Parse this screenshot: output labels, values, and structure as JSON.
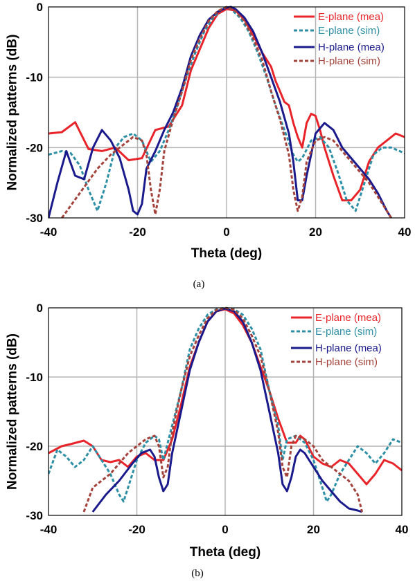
{
  "chart_data": [
    {
      "type": "line",
      "caption": "(a)",
      "xlabel": "Theta (deg)",
      "ylabel": "Normalized patterns (dB)",
      "xlim": [
        -40,
        40
      ],
      "ylim": [
        -30,
        0
      ],
      "xticks": [
        -40,
        -20,
        0,
        20,
        40
      ],
      "yticks": [
        0,
        -10,
        -20,
        -30
      ],
      "grid": true,
      "legend_position": "top-right",
      "series": [
        {
          "name": "E-plane (mea)",
          "color": "#e8242a",
          "dash": "solid",
          "x": [
            -40,
            -37,
            -34,
            -31,
            -28,
            -25,
            -22,
            -19,
            -16,
            -13,
            -10,
            -8,
            -6,
            -4,
            -2,
            0,
            2,
            4,
            6,
            8,
            10,
            11,
            12,
            13,
            14,
            15,
            16,
            17,
            18,
            19,
            20,
            21,
            22,
            24,
            26,
            28,
            30,
            32,
            34,
            36,
            38,
            40
          ],
          "y": [
            -18,
            -17.8,
            -16.4,
            -20.2,
            -20.5,
            -20,
            -21.8,
            -21.5,
            -17.5,
            -17,
            -14,
            -9,
            -6,
            -3,
            -1,
            -0.3,
            -0.5,
            -1.8,
            -4,
            -6.5,
            -8.5,
            -10.5,
            -12,
            -13.5,
            -14,
            -16.5,
            -18.5,
            -20,
            -16.5,
            -15.2,
            -15.5,
            -17.5,
            -20,
            -24,
            -27.5,
            -27.5,
            -26,
            -22,
            -20,
            -19,
            -18,
            -18.5
          ]
        },
        {
          "name": "E-plane (sim)",
          "color": "#2d8fa6",
          "dash": "dashed",
          "x": [
            -40,
            -37,
            -35,
            -33,
            -31,
            -29,
            -27,
            -25,
            -23,
            -21,
            -19,
            -17,
            -15,
            -13,
            -11,
            -9,
            -7,
            -5,
            -3,
            -1,
            0,
            1,
            3,
            5,
            7,
            9,
            11,
            13,
            15,
            16,
            17,
            19,
            21,
            23,
            25,
            27,
            29,
            31,
            33,
            35,
            37,
            40
          ],
          "y": [
            -21,
            -20.5,
            -20.8,
            -22.5,
            -26,
            -29,
            -25,
            -20,
            -18.5,
            -18,
            -19,
            -22,
            -20.5,
            -17.5,
            -14,
            -10,
            -6.5,
            -3.5,
            -1.5,
            -0.3,
            -0.1,
            -0.3,
            -1.5,
            -3.5,
            -6.5,
            -10,
            -14,
            -17.5,
            -21,
            -22,
            -21.5,
            -19,
            -18.5,
            -20,
            -23.5,
            -27.5,
            -29,
            -25,
            -21,
            -20,
            -20,
            -20.8
          ]
        },
        {
          "name": "H-plane (mea)",
          "color": "#1a1a8c",
          "dash": "solid",
          "x": [
            -40,
            -38,
            -36,
            -34,
            -32,
            -30,
            -28,
            -26,
            -24,
            -22,
            -21,
            -20,
            -19,
            -18,
            -16,
            -14,
            -12,
            -10,
            -8,
            -6,
            -4,
            -2,
            0,
            1,
            2,
            4,
            6,
            8,
            10,
            12,
            14,
            15,
            16,
            17,
            18,
            20,
            22,
            24,
            26,
            28,
            30,
            32,
            34,
            36,
            37
          ],
          "y": [
            -30,
            -25,
            -20.5,
            -24,
            -24.5,
            -20,
            -17.5,
            -19,
            -21.5,
            -26,
            -29,
            -29.5,
            -28,
            -23,
            -20.5,
            -17.5,
            -15,
            -11.5,
            -7,
            -4,
            -1.8,
            -0.7,
            -0.1,
            0,
            -0.3,
            -1.5,
            -3.5,
            -6.5,
            -10,
            -13.5,
            -18,
            -22,
            -27.5,
            -27.5,
            -24,
            -18,
            -16.5,
            -17.5,
            -20,
            -21.5,
            -23,
            -24.5,
            -26.5,
            -29,
            -30
          ]
        },
        {
          "name": "H-plane (sim)",
          "color": "#a3433b",
          "dash": "dashed",
          "x": [
            -37,
            -33,
            -29,
            -26,
            -23,
            -21,
            -19,
            -18,
            -17,
            -16,
            -15,
            -14,
            -12,
            -10,
            -8,
            -6,
            -4,
            -2,
            0,
            2,
            4,
            6,
            8,
            10,
            12,
            14,
            15,
            16,
            17,
            18,
            20,
            22,
            24,
            26,
            28,
            30,
            32,
            34,
            36,
            37
          ],
          "y": [
            -30,
            -26.5,
            -23,
            -21,
            -19.5,
            -18.5,
            -19,
            -21,
            -26,
            -29.5,
            -26,
            -20.5,
            -16,
            -12,
            -7.5,
            -4.5,
            -2,
            -0.6,
            0,
            -0.6,
            -2,
            -4.5,
            -7.5,
            -12,
            -16,
            -21,
            -26,
            -29,
            -27,
            -22,
            -19,
            -18.5,
            -19,
            -20.5,
            -22,
            -23.5,
            -25,
            -27,
            -29,
            -30
          ]
        }
      ]
    },
    {
      "type": "line",
      "caption": "(b)",
      "xlabel": "Theta (deg)",
      "ylabel": "Normalized patterns (dB)",
      "xlim": [
        -40,
        40
      ],
      "ylim": [
        -30,
        0
      ],
      "xticks": [
        -40,
        -20,
        0,
        20,
        40
      ],
      "yticks": [
        0,
        -10,
        -20,
        -30
      ],
      "grid": true,
      "legend_position": "top-right",
      "series": [
        {
          "name": "E-plane (mea)",
          "color": "#e8242a",
          "dash": "solid",
          "x": [
            -40,
            -37,
            -35,
            -32,
            -30,
            -28,
            -26,
            -24,
            -22,
            -20,
            -18,
            -16,
            -14,
            -12,
            -10,
            -8,
            -6,
            -4,
            -2,
            0,
            2,
            4,
            6,
            8,
            10,
            12,
            14,
            16,
            17,
            18,
            20,
            22,
            24,
            26,
            28,
            30,
            32,
            34,
            36,
            38,
            40
          ],
          "y": [
            -21,
            -20,
            -19.7,
            -19.2,
            -20,
            -22,
            -22.3,
            -22,
            -23,
            -21.5,
            -21,
            -22,
            -22,
            -19,
            -14,
            -8.5,
            -5,
            -2,
            -0.5,
            -0.2,
            -0.8,
            -2.5,
            -5,
            -8.5,
            -12,
            -16,
            -19.5,
            -19.5,
            -18.5,
            -19,
            -21.5,
            -22.5,
            -23,
            -22,
            -22.5,
            -24,
            -25.5,
            -24,
            -22,
            -22.5,
            -23.5
          ]
        },
        {
          "name": "E-plane (sim)",
          "color": "#2d8fa6",
          "dash": "dashed",
          "x": [
            -40,
            -38,
            -36,
            -34,
            -32,
            -30,
            -28,
            -26,
            -24,
            -23,
            -22,
            -20,
            -18,
            -16,
            -15,
            -14,
            -12,
            -10,
            -8,
            -6,
            -4,
            -2,
            0,
            2,
            4,
            6,
            8,
            10,
            12,
            13,
            14,
            16,
            18,
            20,
            22,
            23,
            24,
            26,
            28,
            30,
            32,
            34,
            36,
            38,
            40
          ],
          "y": [
            -24,
            -20.5,
            -21.5,
            -23,
            -22,
            -20,
            -22,
            -24,
            -27,
            -28,
            -26,
            -22,
            -19.5,
            -18.5,
            -19,
            -22,
            -17,
            -12,
            -6,
            -3,
            -1,
            -0.2,
            0,
            -0.2,
            -1,
            -3,
            -6,
            -12,
            -17,
            -22,
            -19,
            -18.5,
            -19.5,
            -22,
            -26,
            -28,
            -27,
            -24,
            -22,
            -20,
            -21,
            -22.5,
            -21,
            -19,
            -19.5
          ]
        },
        {
          "name": "H-plane (mea)",
          "color": "#1a1a8c",
          "dash": "solid",
          "x": [
            -30,
            -27,
            -24,
            -21,
            -19,
            -17,
            -16,
            -15,
            -14,
            -13,
            -12,
            -10,
            -8,
            -6,
            -4,
            -2,
            0,
            2,
            4,
            6,
            8,
            10,
            12,
            13,
            14,
            15,
            16,
            17,
            18,
            20,
            22,
            24,
            26,
            28,
            30,
            31
          ],
          "y": [
            -29.5,
            -27,
            -25,
            -22.5,
            -21,
            -20.5,
            -21.5,
            -24.5,
            -26.5,
            -25.5,
            -21,
            -15,
            -9,
            -5,
            -2,
            -0.5,
            -0.1,
            -0.5,
            -2,
            -5,
            -9,
            -15,
            -21,
            -25.5,
            -26.5,
            -24.5,
            -21.5,
            -20.5,
            -21,
            -23,
            -25,
            -26.5,
            -28,
            -29,
            -29.3,
            -29.5
          ]
        },
        {
          "name": "H-plane (sim)",
          "color": "#a3433b",
          "dash": "dashed",
          "x": [
            -32,
            -30,
            -28,
            -26,
            -24,
            -22,
            -20,
            -18,
            -16,
            -15,
            -14,
            -13,
            -12,
            -10,
            -8,
            -6,
            -4,
            -2,
            0,
            2,
            4,
            6,
            8,
            10,
            12,
            13,
            14,
            15,
            16,
            18,
            20,
            22,
            24,
            26,
            28,
            30,
            31
          ],
          "y": [
            -29.5,
            -26,
            -25,
            -24,
            -22.5,
            -21,
            -20,
            -19,
            -18.5,
            -20,
            -24.5,
            -23,
            -18,
            -12,
            -7,
            -4,
            -1.5,
            -0.3,
            0,
            -0.3,
            -1.5,
            -4,
            -7,
            -12,
            -18,
            -23,
            -24.5,
            -20,
            -18.5,
            -19,
            -20,
            -22,
            -23,
            -24,
            -25,
            -27,
            -29.5
          ]
        }
      ]
    }
  ]
}
